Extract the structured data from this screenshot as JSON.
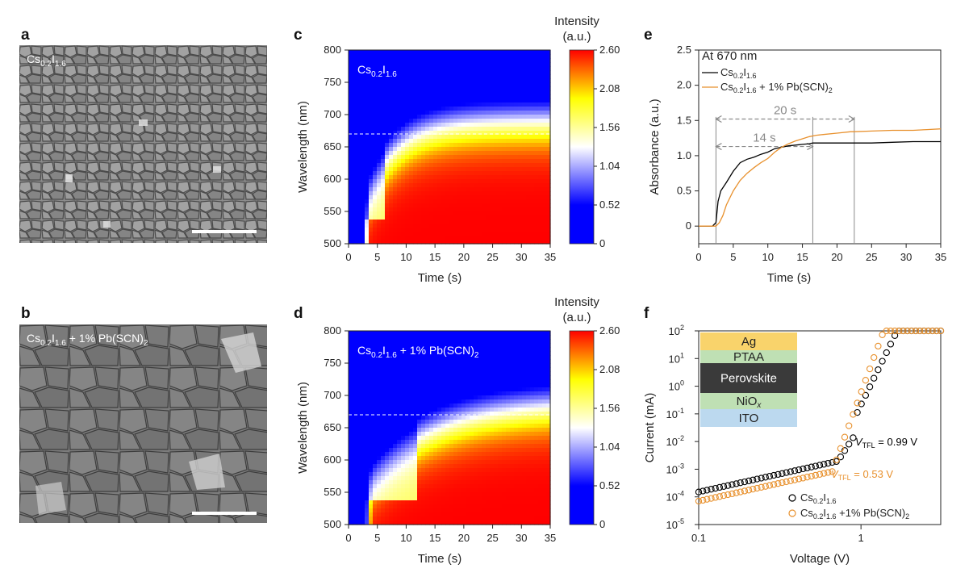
{
  "panels": {
    "a": {
      "letter": "a",
      "label_base": "Cs",
      "label_sub1": "0.2",
      "label_mid": "I",
      "label_sub2": "1.6",
      "label_tail": ""
    },
    "b": {
      "letter": "b",
      "label_base": "Cs",
      "label_sub1": "0.2",
      "label_mid": "I",
      "label_sub2": "1.6",
      "label_tail": " + 1% Pb(SCN)",
      "label_sub3": "2"
    },
    "c": {
      "letter": "c",
      "inset_base": "Cs",
      "inset_sub1": "0.2",
      "inset_mid": "I",
      "inset_sub2": "1.6",
      "inset_tail": ""
    },
    "d": {
      "letter": "d",
      "inset_base": "Cs",
      "inset_sub1": "0.2",
      "inset_mid": "I",
      "inset_sub2": "1.6",
      "inset_tail": " + 1% Pb(SCN)",
      "inset_sub3": "2"
    },
    "e": {
      "letter": "e"
    },
    "f": {
      "letter": "f"
    }
  },
  "chart_data": [
    {
      "id": "c",
      "type": "heatmap",
      "xlabel": "Time (s)",
      "ylabel": "Wavelength (nm)",
      "xlim": [
        0,
        35
      ],
      "ylim": [
        500,
        800
      ],
      "xticks": [
        "0",
        "5",
        "10",
        "15",
        "20",
        "25",
        "30",
        "35"
      ],
      "yticks": [
        "500",
        "550",
        "600",
        "650",
        "700",
        "750",
        "800"
      ],
      "colorbar_title_line1": "Intensity",
      "colorbar_title_line2": "(a.u.)",
      "colorbar_ticks": [
        "0",
        "0.52",
        "1.04",
        "1.56",
        "2.08",
        "2.60"
      ],
      "clim": [
        0,
        2.6
      ],
      "dashed_line_nm": 670,
      "onset_s": 2.5,
      "rapid_s": 6,
      "colors": {
        "low": "#0000ff",
        "mid": "#ffffff",
        "high": "#ffff00",
        "top": "#ff0000"
      }
    },
    {
      "id": "d",
      "type": "heatmap",
      "xlabel": "Time (s)",
      "ylabel": "Wavelength (nm)",
      "xlim": [
        0,
        35
      ],
      "ylim": [
        500,
        800
      ],
      "xticks": [
        "0",
        "5",
        "10",
        "15",
        "20",
        "25",
        "30",
        "35"
      ],
      "yticks": [
        "500",
        "550",
        "600",
        "650",
        "700",
        "750",
        "800"
      ],
      "colorbar_title_line1": "Intensity",
      "colorbar_title_line2": "(a.u.)",
      "colorbar_ticks": [
        "0",
        "0.52",
        "1.04",
        "1.56",
        "2.08",
        "2.60"
      ],
      "clim": [
        0,
        2.6
      ],
      "dashed_line_nm": 670,
      "onset_s": 2.8,
      "rapid_s": 12,
      "colors": {
        "low": "#0000ff",
        "mid": "#ffffff",
        "high": "#ffff00",
        "top": "#ff0000"
      }
    },
    {
      "id": "e",
      "type": "line",
      "xlabel": "Time (s)",
      "ylabel": "Absorbance (a.u.)",
      "xlim": [
        0,
        35
      ],
      "ylim": [
        -0.25,
        2.5
      ],
      "xticks": [
        "0",
        "5",
        "10",
        "15",
        "20",
        "25",
        "30",
        "35"
      ],
      "yticks": [
        "0",
        "0.5",
        "1.0",
        "1.5",
        "2.0",
        "2.5"
      ],
      "annotation": "At 670 nm",
      "series": [
        {
          "name_base": "Cs",
          "name_sub1": "0.2",
          "name_mid": "I",
          "name_sub2": "1.6",
          "name_tail": "",
          "color": "#000000",
          "x": [
            0,
            1,
            2,
            2.5,
            2.8,
            3.2,
            4,
            5,
            6,
            7,
            8,
            9,
            10,
            11,
            12,
            13,
            14,
            15,
            16,
            16.5,
            18,
            20,
            22,
            25,
            28,
            31,
            33,
            35
          ],
          "y": [
            0,
            0,
            0,
            0.05,
            0.35,
            0.5,
            0.62,
            0.78,
            0.9,
            0.95,
            0.98,
            1.02,
            1.05,
            1.1,
            1.12,
            1.14,
            1.15,
            1.16,
            1.17,
            1.18,
            1.18,
            1.18,
            1.18,
            1.18,
            1.19,
            1.2,
            1.2,
            1.2
          ]
        },
        {
          "name_base": "Cs",
          "name_sub1": "0.2",
          "name_mid": "I",
          "name_sub2": "1.6",
          "name_tail": " + 1% Pb(SCN)",
          "name_sub3": "2",
          "color": "#e8912e",
          "x": [
            0,
            1,
            2,
            2.5,
            3,
            3.5,
            4,
            5,
            6,
            7,
            8,
            9,
            10,
            11,
            12,
            13,
            14,
            15,
            16,
            17,
            18,
            20,
            22,
            22.5,
            25,
            28,
            31,
            33,
            35
          ],
          "y": [
            0,
            0,
            0,
            0,
            0.05,
            0.15,
            0.3,
            0.5,
            0.65,
            0.75,
            0.83,
            0.9,
            0.96,
            1.05,
            1.12,
            1.17,
            1.21,
            1.24,
            1.27,
            1.29,
            1.3,
            1.32,
            1.34,
            1.34,
            1.35,
            1.36,
            1.36,
            1.37,
            1.38
          ]
        }
      ],
      "arrows": [
        {
          "label": "20 s",
          "from_s": 2.5,
          "to_s": 22.5,
          "y": 1.52
        },
        {
          "label": "14 s",
          "from_s": 2.5,
          "to_s": 16.5,
          "y": 1.13
        }
      ],
      "vlines_s": [
        2.5,
        16.5,
        22.5
      ]
    },
    {
      "id": "f",
      "type": "scatter",
      "xlabel": "Voltage (V)",
      "ylabel": "Current (mA)",
      "xscale": "log",
      "yscale": "log",
      "xlim": [
        0.1,
        3.1
      ],
      "ylim": [
        1e-05,
        100
      ],
      "xticks": [
        "0.1",
        "1"
      ],
      "yticks_exp": [
        "-5",
        "-4",
        "-3",
        "-2",
        "-1",
        "0",
        "1",
        "2"
      ],
      "ytick_base": "10",
      "series": [
        {
          "name_base": "Cs",
          "name_sub1": "0.2",
          "name_mid": "I",
          "name_sub2": "1.6",
          "name_tail": "",
          "color": "#000000",
          "vtfl": 0.99
        },
        {
          "name_base": "Cs",
          "name_sub1": "0.2",
          "name_mid": "I",
          "name_sub2": "1.6",
          "name_tail": " +1% Pb(SCN)",
          "name_sub3": "2",
          "color": "#e8912e",
          "vtfl": 0.53
        }
      ],
      "annotations": [
        {
          "v": "V",
          "sub": "TFL",
          "text": " = 0.99 V",
          "color": "#000000"
        },
        {
          "v": "V",
          "sub": "TFL",
          "text": " = 0.53 V",
          "color": "#e8912e"
        }
      ],
      "device_stack": [
        {
          "label": "Ag",
          "color": "#f9d36b",
          "text_color": "#222222"
        },
        {
          "label": "PTAA",
          "color": "#bfe0b4",
          "text_color": "#222222"
        },
        {
          "label": "Perovskite",
          "color": "#3a3a3a",
          "text_color": "#ffffff"
        },
        {
          "label": "NiO",
          "sub": "x",
          "color": "#bfe0b4",
          "text_color": "#222222"
        },
        {
          "label": "ITO",
          "color": "#bcd9ef",
          "text_color": "#222222"
        }
      ]
    }
  ]
}
